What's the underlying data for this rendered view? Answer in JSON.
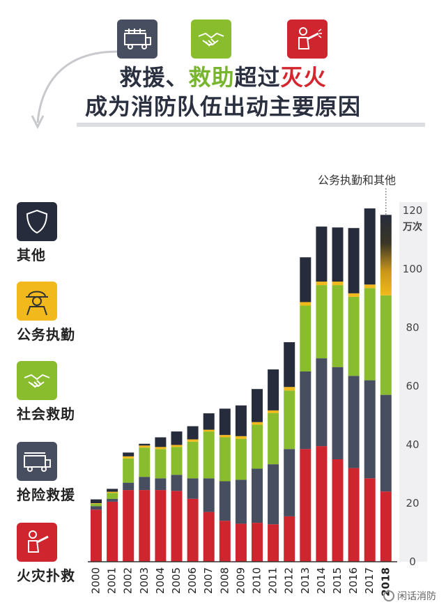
{
  "header": {
    "title_part1": "救援、",
    "title_part2": "救助",
    "title_part3": "超过",
    "title_part4": "灭火",
    "subtitle": "成为消防队伍出动主要原因"
  },
  "legend": [
    {
      "label": "其他",
      "icon": "shield-icon",
      "color": "#262c3b"
    },
    {
      "label": "公务执勤",
      "icon": "firefighter-icon",
      "color": "#f1b91c"
    },
    {
      "label": "社会救助",
      "icon": "handshake-icon",
      "color": "#89bd2d"
    },
    {
      "label": "抢险救援",
      "icon": "fire-truck-icon",
      "color": "#474e60"
    },
    {
      "label": "火灾扑救",
      "icon": "fire-hose-icon",
      "color": "#cf252e"
    }
  ],
  "watermark": "闲话消防",
  "chart_data": {
    "type": "bar",
    "stacked": true,
    "categories": [
      "2000",
      "2001",
      "2002",
      "2003",
      "2004",
      "2005",
      "2006",
      "2007",
      "2008",
      "2009",
      "2010",
      "2011",
      "2012",
      "2013",
      "2014",
      "2015",
      "2016",
      "2017",
      "2018"
    ],
    "ylim": [
      0,
      120
    ],
    "yticks": [
      0,
      20,
      40,
      60,
      80,
      100,
      120
    ],
    "yunit": "万次",
    "annotation": "公务执勤和其他",
    "series": [
      {
        "name": "火灾扑救",
        "color": "#cf252e",
        "values": [
          17.8,
          20.5,
          24.5,
          24.5,
          24.5,
          24.2,
          21.5,
          17,
          14,
          13,
          13.3,
          12.8,
          15.5,
          38.5,
          39.5,
          35,
          32,
          28.5,
          24
        ]
      },
      {
        "name": "抢险救援",
        "color": "#474e60",
        "values": [
          1.2,
          1,
          2.5,
          4.5,
          4,
          5.5,
          7,
          11.5,
          13.5,
          15,
          18.5,
          20.5,
          23,
          26.5,
          30,
          31.5,
          31.5,
          33.5,
          33
        ]
      },
      {
        "name": "社会救助",
        "color": "#89bd2d",
        "values": [
          0.8,
          2,
          8.3,
          10,
          10,
          9.5,
          12.5,
          16,
          15,
          14,
          15,
          17.5,
          20,
          22.5,
          25,
          28,
          27,
          31.5,
          34
        ]
      },
      {
        "name": "公务执勤",
        "color": "#f1b91c",
        "values": [
          0.2,
          0.4,
          0.7,
          0.7,
          0.7,
          0.7,
          0.8,
          0.6,
          0.8,
          0.9,
          0.9,
          0.9,
          1.2,
          1.2,
          1.2,
          1.2,
          1.2,
          1.2,
          0
        ]
      },
      {
        "name": "其他",
        "color": "#262c3b",
        "values": [
          1.3,
          1,
          1.3,
          0.6,
          3.3,
          4.6,
          4.5,
          5.6,
          9,
          10.5,
          11.3,
          14,
          15.3,
          15.3,
          18.8,
          18.5,
          22.3,
          26,
          0
        ]
      },
      {
        "name": "公务执勤和其他",
        "color": "#f1b91c",
        "values": [
          0,
          0,
          0,
          0,
          0,
          0,
          0,
          0,
          0,
          0,
          0,
          0,
          0,
          0,
          0,
          0,
          0,
          0,
          27.5
        ]
      }
    ]
  }
}
